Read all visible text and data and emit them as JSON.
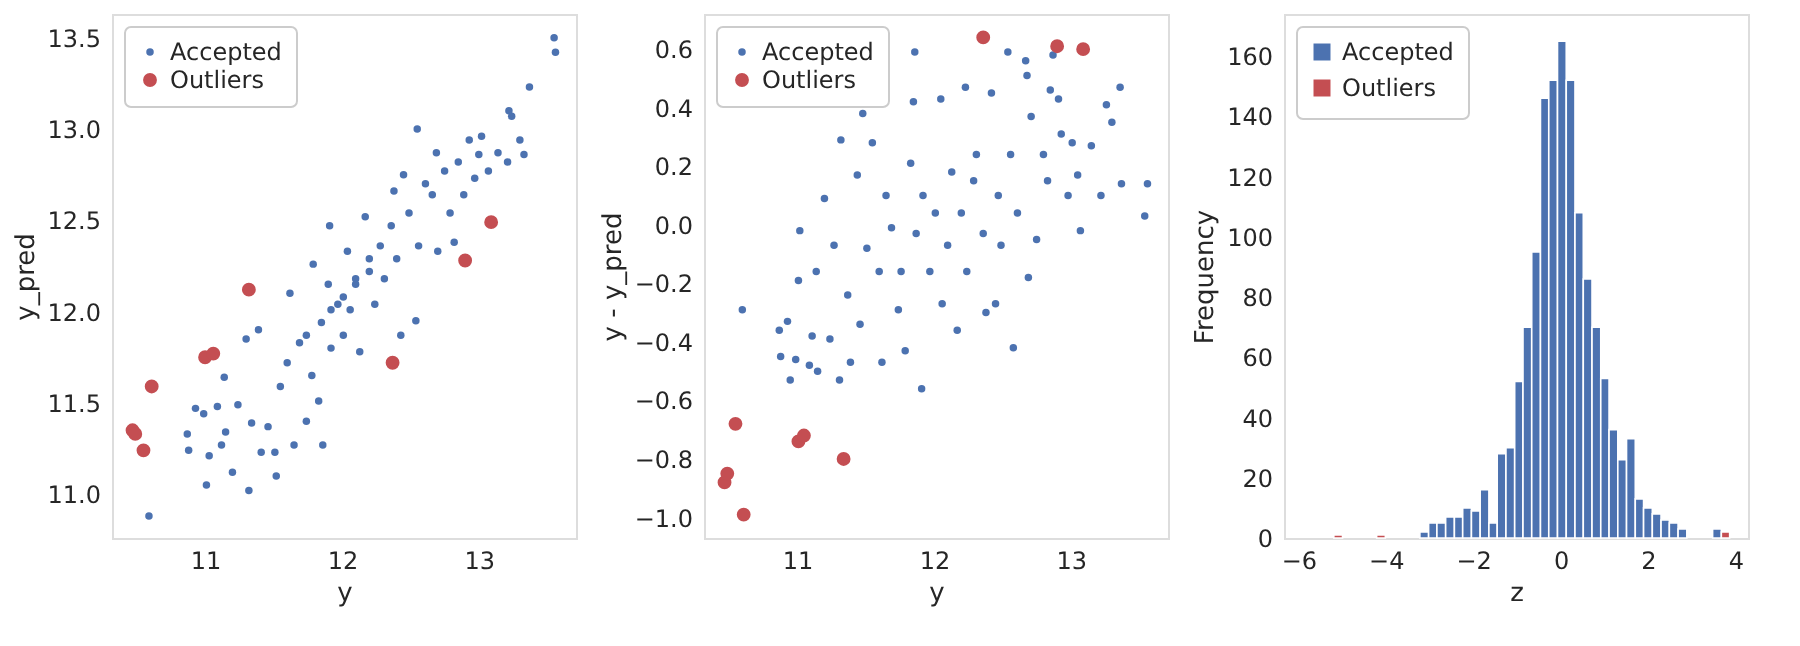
{
  "chart_data": [
    {
      "type": "scatter",
      "xlabel": "y",
      "ylabel": "y_pred",
      "xlim": [
        10.32,
        13.71
      ],
      "xticks": [
        11,
        12,
        13
      ],
      "ylim": [
        10.76,
        13.63
      ],
      "yticks": [
        {
          "value": 11,
          "label": "11.0"
        },
        {
          "value": 11.5,
          "label": "11.5"
        },
        {
          "value": 12,
          "label": "12.0"
        },
        {
          "value": 12.5,
          "label": "12.5"
        },
        {
          "value": 13,
          "label": "13.0"
        },
        {
          "value": 13.5,
          "label": "13.5"
        }
      ],
      "grid": false,
      "legend": "top left",
      "marker": "circle",
      "series": [
        {
          "name": "Accepted",
          "color": "#4c72b0",
          "x": [
            10.59,
            10.87,
            10.88,
            10.93,
            10.99,
            11.01,
            11.03,
            11.09,
            11.12,
            11.15,
            11.14,
            11.2,
            11.24,
            11.3,
            11.32,
            11.34,
            11.39,
            11.41,
            11.46,
            11.51,
            11.52,
            11.55,
            11.6,
            11.62,
            11.65,
            11.69,
            11.74,
            11.74,
            11.78,
            11.79,
            11.83,
            11.85,
            11.86,
            11.9,
            11.92,
            11.92,
            11.91,
            11.97,
            12.01,
            12.01,
            12.04,
            12.06,
            12.1,
            12.1,
            12.13,
            12.17,
            12.2,
            12.2,
            12.24,
            12.28,
            12.31,
            12.36,
            12.38,
            12.4,
            12.43,
            12.45,
            12.49,
            12.54,
            12.55,
            12.56,
            12.61,
            12.66,
            12.69,
            12.7,
            12.75,
            12.79,
            12.82,
            12.85,
            12.89,
            12.93,
            12.97,
            13.0,
            13.02,
            13.07,
            13.14,
            13.21,
            13.22,
            13.24,
            13.3,
            13.33,
            13.37,
            13.55,
            13.56
          ],
          "values": [
            10.88,
            11.33,
            11.24,
            11.47,
            11.44,
            11.05,
            11.21,
            11.48,
            11.27,
            11.34,
            11.64,
            11.12,
            11.49,
            11.85,
            11.02,
            11.39,
            11.9,
            11.23,
            11.37,
            11.23,
            11.1,
            11.59,
            11.72,
            12.1,
            11.27,
            11.83,
            11.4,
            11.87,
            11.65,
            12.26,
            11.51,
            11.94,
            11.27,
            12.15,
            11.8,
            12.01,
            12.47,
            12.04,
            11.87,
            12.08,
            12.33,
            12.01,
            12.15,
            12.18,
            11.78,
            12.52,
            12.22,
            12.29,
            12.04,
            12.36,
            12.18,
            12.47,
            12.66,
            12.29,
            11.87,
            12.75,
            12.54,
            11.95,
            13.0,
            12.36,
            12.7,
            12.64,
            12.87,
            12.33,
            12.77,
            12.54,
            12.38,
            12.82,
            12.64,
            12.94,
            12.73,
            12.86,
            12.96,
            12.77,
            12.87,
            12.82,
            13.1,
            13.07,
            12.94,
            12.86,
            13.23,
            13.5,
            13.42
          ]
        },
        {
          "name": "Outliers",
          "color": "#c44e52",
          "x": [
            10.47,
            10.49,
            10.55,
            10.61,
            11.0,
            11.06,
            11.32,
            12.37,
            12.9,
            13.09
          ],
          "values": [
            11.35,
            11.33,
            11.24,
            11.59,
            11.75,
            11.77,
            12.12,
            11.72,
            12.28,
            12.49
          ]
        }
      ]
    },
    {
      "type": "scatter",
      "xlabel": "y",
      "ylabel": "y - y_pred",
      "xlim": [
        10.32,
        13.71
      ],
      "xticks": [
        11,
        12,
        13
      ],
      "ylim": [
        -1.07,
        0.72
      ],
      "yticks": [
        {
          "value": -1,
          "label": "−1.0"
        },
        {
          "value": -0.8,
          "label": "−0.8"
        },
        {
          "value": -0.6,
          "label": "−0.6"
        },
        {
          "value": -0.4,
          "label": "−0.4"
        },
        {
          "value": -0.2,
          "label": "−0.2"
        },
        {
          "value": 0,
          "label": "0.0"
        },
        {
          "value": 0.2,
          "label": "0.2"
        },
        {
          "value": 0.4,
          "label": "0.4"
        },
        {
          "value": 0.6,
          "label": "0.6"
        }
      ],
      "grid": false,
      "legend": "top left",
      "marker": "circle",
      "series": [
        {
          "name": "Accepted",
          "color": "#4c72b0",
          "x": [
            10.6,
            10.87,
            10.88,
            10.93,
            10.95,
            10.99,
            11.02,
            11.01,
            11.09,
            11.11,
            11.15,
            11.14,
            11.2,
            11.24,
            11.27,
            11.31,
            11.32,
            11.37,
            11.39,
            11.44,
            11.46,
            11.48,
            11.51,
            11.55,
            11.6,
            11.62,
            11.65,
            11.69,
            11.74,
            11.76,
            11.79,
            11.83,
            11.85,
            11.86,
            11.87,
            11.91,
            11.92,
            11.97,
            12.01,
            12.05,
            12.06,
            12.1,
            12.13,
            12.17,
            12.2,
            12.23,
            12.24,
            12.29,
            12.31,
            12.36,
            12.38,
            12.42,
            12.45,
            12.47,
            12.49,
            12.54,
            12.56,
            12.58,
            12.61,
            12.67,
            12.68,
            12.69,
            12.71,
            12.75,
            12.8,
            12.83,
            12.85,
            12.87,
            12.91,
            12.93,
            12.98,
            13.01,
            13.05,
            13.07,
            13.15,
            13.22,
            13.26,
            13.3,
            13.36,
            13.37,
            13.54,
            13.56
          ],
          "values": [
            -0.29,
            -0.36,
            -0.45,
            -0.33,
            -0.53,
            -0.46,
            -0.02,
            -0.19,
            -0.48,
            -0.38,
            -0.5,
            -0.16,
            0.09,
            -0.39,
            -0.07,
            -0.53,
            0.29,
            -0.24,
            -0.47,
            0.17,
            -0.34,
            0.38,
            -0.08,
            0.28,
            -0.16,
            -0.47,
            0.1,
            -0.01,
            -0.29,
            -0.16,
            -0.43,
            0.21,
            0.42,
            0.59,
            -0.03,
            -0.56,
            0.1,
            -0.16,
            0.04,
            0.43,
            -0.27,
            -0.07,
            0.18,
            -0.36,
            0.04,
            0.47,
            -0.16,
            0.15,
            0.24,
            -0.03,
            -0.3,
            0.45,
            -0.27,
            0.1,
            -0.07,
            0.59,
            0.24,
            -0.42,
            0.04,
            0.56,
            0.51,
            -0.18,
            0.37,
            -0.05,
            0.24,
            0.15,
            0.46,
            0.58,
            0.43,
            0.31,
            0.1,
            0.28,
            0.17,
            -0.02,
            0.27,
            0.1,
            0.41,
            0.35,
            0.47,
            0.14,
            0.03,
            0.14
          ]
        },
        {
          "name": "Outliers",
          "color": "#c44e52",
          "x": [
            10.47,
            10.49,
            10.55,
            10.61,
            11.01,
            11.05,
            11.34,
            12.36,
            12.9,
            13.09
          ],
          "values": [
            -0.88,
            -0.85,
            -0.68,
            -0.99,
            -0.74,
            -0.72,
            -0.8,
            0.64,
            0.61,
            0.6
          ]
        }
      ]
    },
    {
      "type": "histogram",
      "xlabel": "z",
      "ylabel": "Frequency",
      "xlim": [
        -6.33,
        4.29
      ],
      "xticks": [
        {
          "value": -6,
          "label": "−6"
        },
        {
          "value": -4,
          "label": "−4"
        },
        {
          "value": -2,
          "label": "−2"
        },
        {
          "value": 0,
          "label": "0"
        },
        {
          "value": 2,
          "label": "2"
        },
        {
          "value": 4,
          "label": "4"
        }
      ],
      "ylim": [
        0,
        174
      ],
      "yticks": [
        0,
        20,
        40,
        60,
        80,
        100,
        120,
        140,
        160
      ],
      "grid": false,
      "legend": "top left",
      "bins": [
        -5.19,
        -4.99,
        -4.8,
        -4.6,
        -4.4,
        -4.21,
        -4.01,
        -3.81,
        -3.61,
        -3.42,
        -3.22,
        -3.02,
        -2.83,
        -2.63,
        -2.43,
        -2.24,
        -2.04,
        -1.84,
        -1.64,
        -1.45,
        -1.25,
        -1.05,
        -0.86,
        -0.66,
        -0.46,
        -0.27,
        -0.07,
        0.13,
        0.33,
        0.52,
        0.72,
        0.92,
        1.11,
        1.31,
        1.51,
        1.71,
        1.9,
        2.1,
        2.3,
        2.49,
        2.69,
        2.89,
        3.08,
        3.28,
        3.48,
        3.68,
        3.87
      ],
      "series": [
        {
          "name": "Accepted",
          "color": "#4c72b0",
          "values": [
            0,
            0,
            0,
            0,
            0,
            0,
            0,
            0,
            0,
            0,
            2,
            5,
            5,
            7,
            7,
            10,
            9,
            16,
            5,
            28,
            30,
            52,
            70,
            95,
            146,
            152,
            165,
            152,
            108,
            86,
            70,
            53,
            36,
            26,
            33,
            13,
            10,
            8,
            6,
            5,
            3,
            0,
            0,
            0,
            3,
            0
          ]
        },
        {
          "name": "Outliers",
          "color": "#c44e52",
          "values": [
            1,
            0,
            0,
            0,
            0,
            1,
            0,
            0,
            0,
            0,
            0,
            0,
            0,
            0,
            0,
            0,
            0,
            0,
            0,
            0,
            0,
            0,
            0,
            0,
            0,
            0,
            0,
            0,
            0,
            0,
            0,
            0,
            0,
            0,
            0,
            0,
            0,
            0,
            0,
            0,
            0,
            0,
            0,
            0,
            0,
            2
          ]
        }
      ]
    }
  ]
}
